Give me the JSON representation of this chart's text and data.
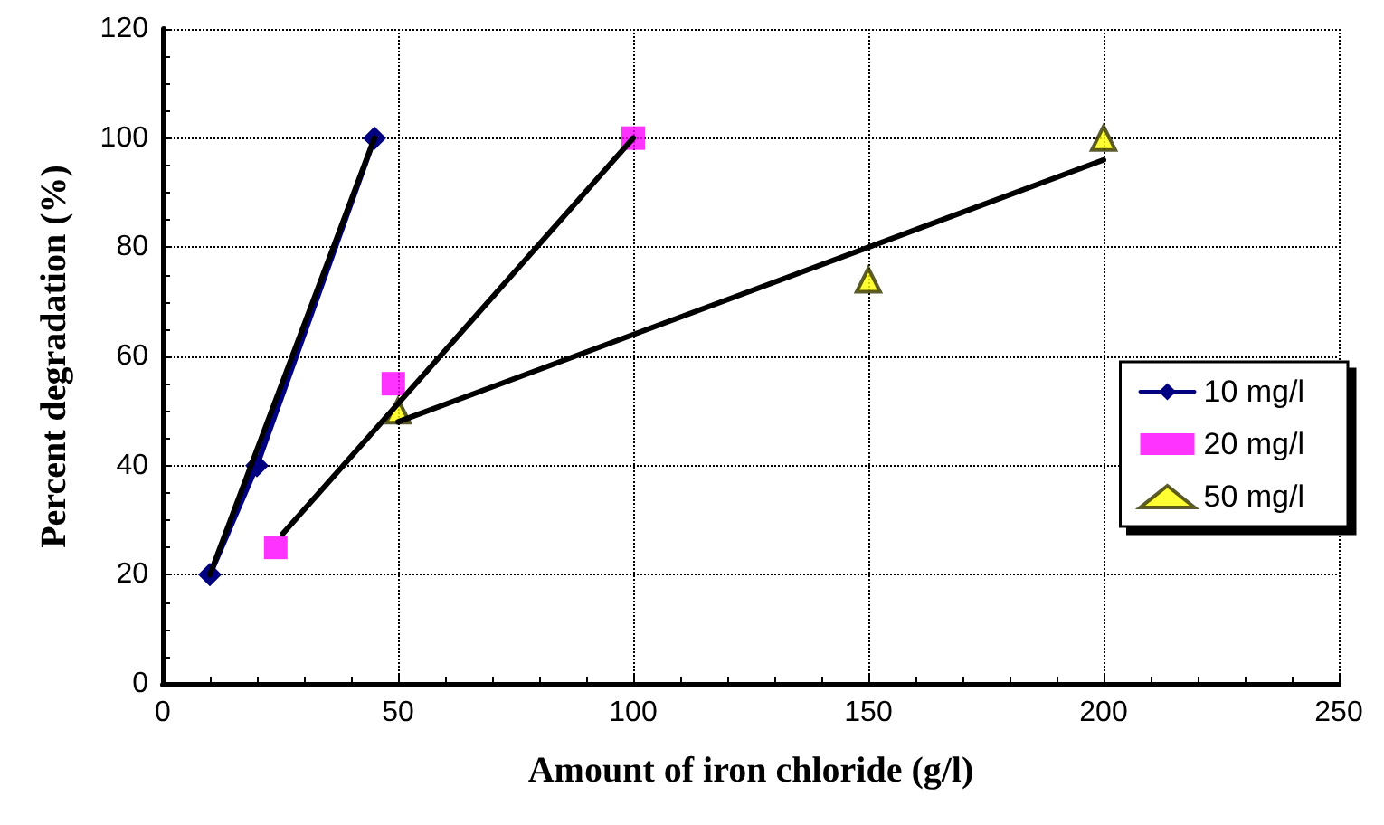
{
  "chart_data": {
    "type": "scatter",
    "xlabel": "Amount of iron chloride (g/l)",
    "ylabel": "Percent degradation (%)",
    "xlim": [
      0,
      250
    ],
    "xticks": [
      0,
      50,
      100,
      150,
      200,
      250
    ],
    "ylim": [
      0,
      120
    ],
    "yticks": [
      0,
      20,
      40,
      60,
      80,
      100,
      120
    ],
    "grid": true,
    "legend": "right",
    "line_style": "solid",
    "series": [
      {
        "name": "10 mg/l",
        "type": "line",
        "marker": "diamond",
        "color": "#000080",
        "x": [
          10,
          20,
          45
        ],
        "values": [
          20,
          40,
          100
        ]
      },
      {
        "name": "20 mg/l",
        "marker": "square",
        "color": "#ff00ff",
        "x": [
          24,
          49,
          100
        ],
        "values": [
          25,
          55,
          100
        ]
      },
      {
        "name": "50 mg/l",
        "marker": "triangle",
        "color": "#ffff00",
        "x": [
          50,
          150,
          200
        ],
        "values": [
          50,
          74,
          100
        ]
      },
      {
        "type": "line",
        "marker": "none",
        "color": "#000000",
        "x": [
          10,
          45
        ],
        "values": [
          20,
          100
        ]
      },
      {
        "type": "line",
        "marker": "none",
        "color": "#000000",
        "x": [
          25.5,
          100
        ],
        "values": [
          27.5,
          100
        ]
      },
      {
        "type": "line",
        "marker": "none",
        "color": "#000000",
        "x": [
          50,
          200
        ],
        "values": [
          48,
          96
        ]
      }
    ]
  }
}
